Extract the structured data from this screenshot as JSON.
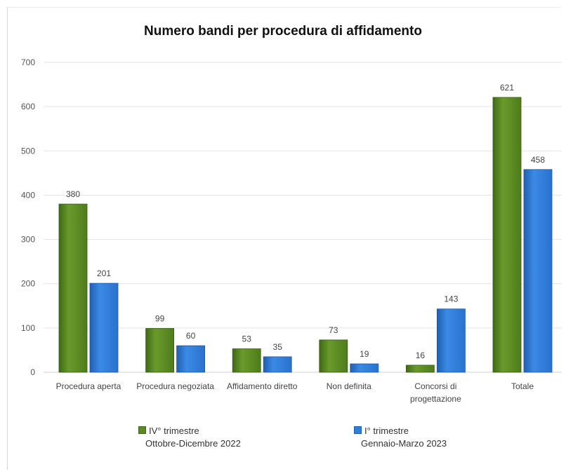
{
  "chart_data": {
    "type": "bar",
    "title": "Numero bandi per procedura  di affidamento",
    "categories": [
      "Procedura aperta",
      "Procedura negoziata",
      "Affidamento diretto",
      "Non definita",
      "Concorsi di progettazione",
      "Totale"
    ],
    "category_lines": [
      [
        "Procedura aperta"
      ],
      [
        "Procedura negoziata"
      ],
      [
        "Affidamento diretto"
      ],
      [
        "Non definita"
      ],
      [
        "Concorsi di",
        "progettazione"
      ],
      [
        "Totale"
      ]
    ],
    "series": [
      {
        "name": "IV° trimestre",
        "sublabel": "Ottobre-Dicembre 2022",
        "color": "#5a8a21",
        "values": [
          380,
          99,
          53,
          73,
          16,
          621
        ]
      },
      {
        "name": "I° trimestre",
        "sublabel": "Gennaio-Marzo 2023",
        "color": "#2f7fd8",
        "values": [
          201,
          60,
          35,
          19,
          143,
          458
        ]
      }
    ],
    "ylim": [
      0,
      700
    ],
    "yticks": [
      0,
      100,
      200,
      300,
      400,
      500,
      600,
      700
    ],
    "grid": true,
    "legend_position": "bottom",
    "xlabel": "",
    "ylabel": ""
  }
}
